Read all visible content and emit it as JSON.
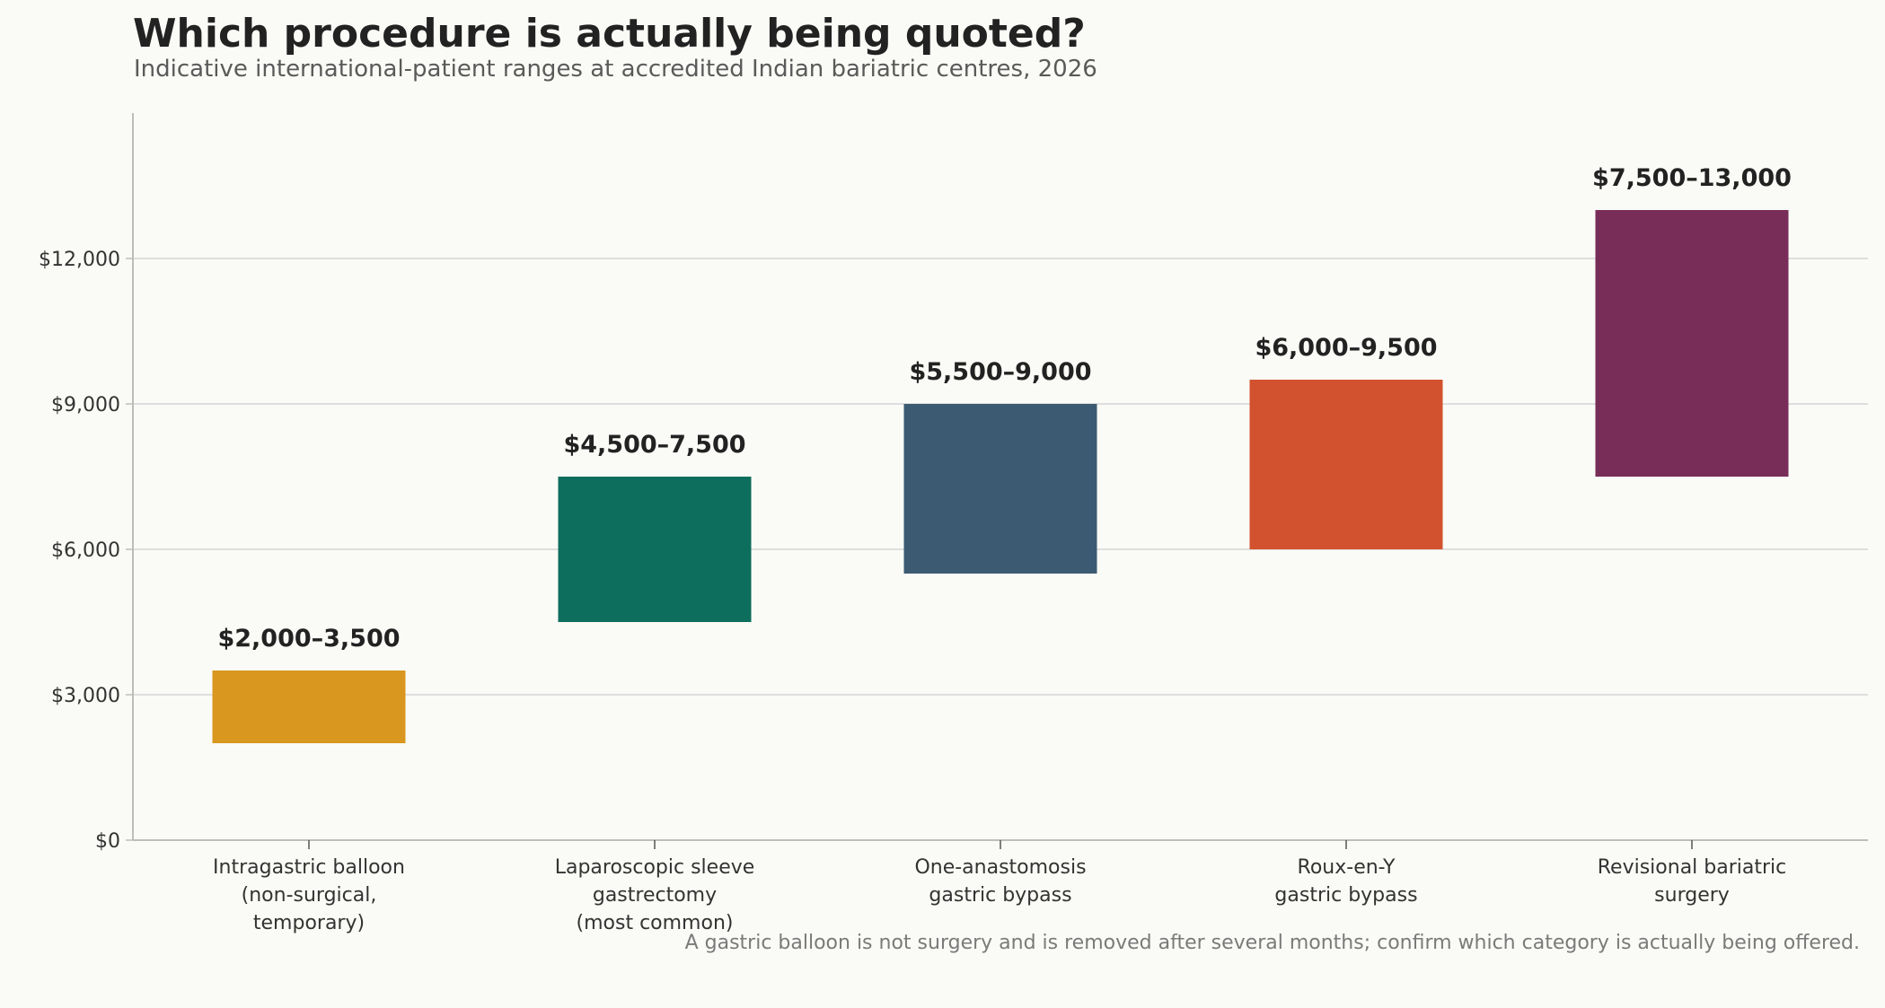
{
  "chart_data": {
    "type": "bar",
    "title": "Which procedure is actually being quoted?",
    "subtitle": "Indicative international-patient ranges at accredited Indian bariatric centres, 2026",
    "note": "A gastric balloon is not surgery and is removed after several months; confirm which category is actually being offered.",
    "categories": [
      [
        "Intragastric balloon",
        "(non-surgical,",
        "temporary)"
      ],
      [
        "Laparoscopic sleeve",
        "gastrectomy",
        "(most common)"
      ],
      [
        "One-anastomosis",
        "gastric bypass"
      ],
      [
        "Roux-en-Y",
        "gastric bypass"
      ],
      [
        "Revisional bariatric",
        "surgery"
      ]
    ],
    "series": [
      {
        "low": [
          2000,
          4500,
          5500,
          6000,
          7500
        ],
        "high": [
          3500,
          7500,
          9000,
          9500,
          13000
        ],
        "labels": [
          "$2,000–3,500",
          "$4,500–7,500",
          "$5,500–9,000",
          "$6,000–9,500",
          "$7,500–13,000"
        ],
        "colors": [
          "#d9971f",
          "#0e6e5e",
          "#3c5a72",
          "#d2512e",
          "#782d58"
        ]
      }
    ],
    "yticks": [
      0,
      3000,
      6000,
      9000,
      12000
    ],
    "ytick_labels": [
      "$0",
      "$3,000",
      "$6,000",
      "$9,000",
      "$12,000"
    ],
    "ylim": [
      0,
      15000
    ],
    "grid": true,
    "xlabel": "",
    "ylabel": ""
  }
}
